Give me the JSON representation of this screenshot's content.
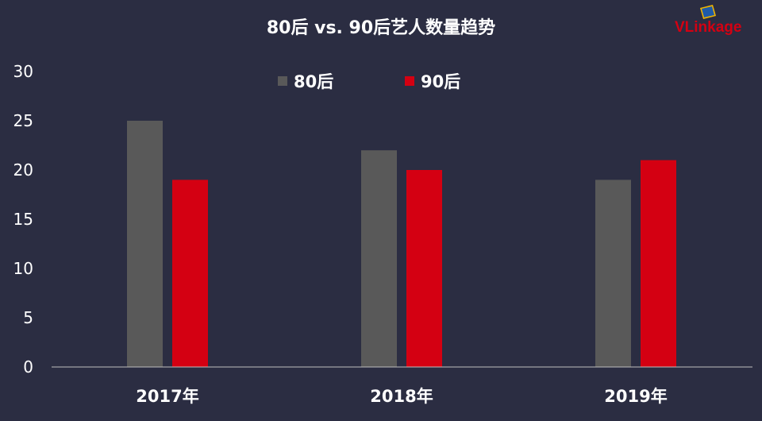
{
  "logo": {
    "text": "VLinkage"
  },
  "colors": {
    "background": "#2b2d42",
    "series_80": "#595959",
    "series_90": "#d40012",
    "text": "#ffffff",
    "axis": "#bfbfbf"
  },
  "chart_data": {
    "type": "bar",
    "title": "80后 vs. 90后艺人数量趋势",
    "categories": [
      "2017年",
      "2018年",
      "2019年"
    ],
    "series": [
      {
        "name": "80后",
        "values": [
          25,
          22,
          19
        ],
        "color": "#595959"
      },
      {
        "name": "90后",
        "values": [
          19,
          20,
          21
        ],
        "color": "#d40012"
      }
    ],
    "yticks": [
      0,
      5,
      10,
      15,
      20,
      25,
      30
    ],
    "ylim": [
      0,
      30
    ],
    "legend": "top-center",
    "grid": false
  }
}
